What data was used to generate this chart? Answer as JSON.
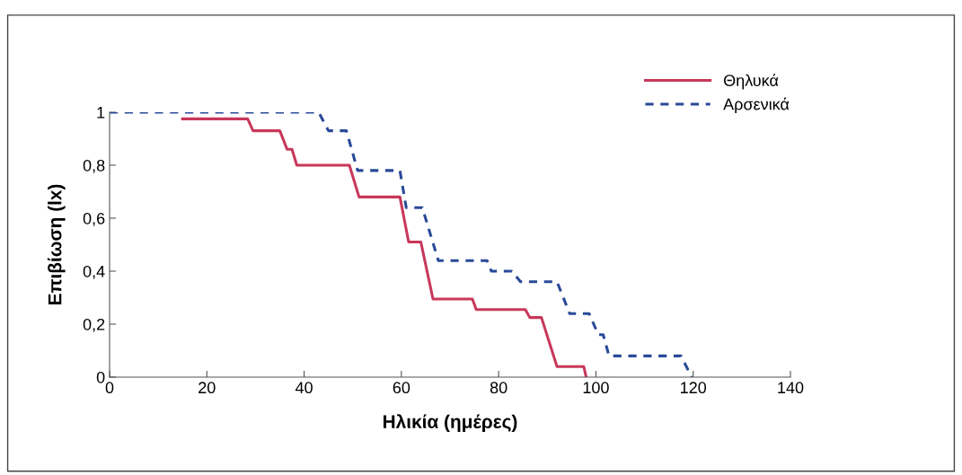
{
  "chart_data": {
    "type": "line",
    "xlabel": "Ηλικία (ημέρες)",
    "ylabel": "Επιβίωση (lx)",
    "xlim": [
      0,
      140
    ],
    "xticks": [
      0,
      20,
      40,
      60,
      80,
      100,
      120,
      140
    ],
    "ylim": [
      0,
      1
    ],
    "yticks": [
      {
        "value": 0,
        "label": "0"
      },
      {
        "value": 0.2,
        "label": "0,2"
      },
      {
        "value": 0.4,
        "label": "0,4"
      },
      {
        "value": 0.6,
        "label": "0,6"
      },
      {
        "value": 0.8,
        "label": "0,8"
      },
      {
        "value": 1,
        "label": "1"
      }
    ],
    "grid": false,
    "legend": "top right",
    "series": [
      {
        "name": "Θηλυκά",
        "color": "#c8385a",
        "line_style": "solid",
        "x": [
          15,
          28.4,
          29.5,
          35,
          36.5,
          37.5,
          38.5,
          49.3,
          51.3,
          59.7,
          61.5,
          64,
          66.5,
          74.6,
          75.4,
          85.5,
          86.4,
          88.8,
          92,
          97.5,
          98
        ],
        "values": [
          0.975,
          0.975,
          0.93,
          0.93,
          0.86,
          0.86,
          0.8,
          0.8,
          0.68,
          0.68,
          0.51,
          0.51,
          0.295,
          0.295,
          0.255,
          0.255,
          0.225,
          0.225,
          0.04,
          0.04,
          0
        ]
      },
      {
        "name": "Αρσενικά",
        "color": "#2a4a98",
        "line_style": "dashed",
        "x": [
          0,
          43,
          45,
          48.7,
          51,
          59.7,
          61,
          64.3,
          67.6,
          77.6,
          78.5,
          82.7,
          84.5,
          92,
          94.6,
          98.6,
          100.5,
          101.5,
          102.7,
          117.5,
          119.7
        ],
        "values": [
          1,
          1,
          0.93,
          0.93,
          0.78,
          0.78,
          0.64,
          0.64,
          0.44,
          0.44,
          0.4,
          0.4,
          0.36,
          0.36,
          0.24,
          0.24,
          0.16,
          0.16,
          0.08,
          0.08,
          0
        ]
      }
    ]
  }
}
